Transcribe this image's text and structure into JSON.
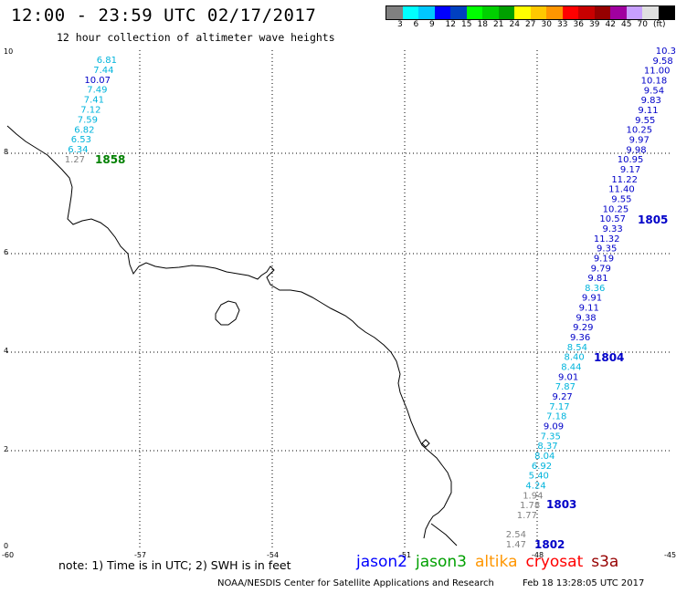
{
  "header": {
    "title": "12:00 - 23:59 UTC 02/17/2017",
    "subtitle": "12 hour collection of altimeter wave heights"
  },
  "legend": {
    "colors": [
      "#808080",
      "#00ffff",
      "#00c8ff",
      "#0000ff",
      "#0040c0",
      "#00ff00",
      "#00d000",
      "#00a000",
      "#ffff00",
      "#ffc800",
      "#ff9600",
      "#ff0000",
      "#c80000",
      "#960000",
      "#a000a0",
      "#c8a0ff",
      "#e0e0e0",
      "#000000"
    ],
    "labels": [
      "3",
      "6",
      "9",
      "12",
      "15",
      "18",
      "21",
      "24",
      "27",
      "30",
      "33",
      "36",
      "39",
      "42",
      "45",
      "70",
      "(ft)"
    ]
  },
  "axes": {
    "x_ticks": [
      "-60",
      "-57",
      "-54",
      "-51",
      "-48",
      "-45"
    ],
    "y_ticks": [
      "10",
      "8",
      "6",
      "4",
      "2",
      "0"
    ]
  },
  "pass_colors": {
    "gray": "#808080",
    "cyan": "#00b4dc",
    "blue": "#0000c8",
    "green": "#008000"
  },
  "passes": [
    {
      "label": "1858",
      "color": "green"
    },
    {
      "label": "1805",
      "color": "blue"
    },
    {
      "label": "1804",
      "color": "blue"
    },
    {
      "label": "1803",
      "color": "blue"
    },
    {
      "label": "1802",
      "color": "blue"
    }
  ],
  "track_1858": [
    {
      "v": "6.81",
      "c": "cyan"
    },
    {
      "v": "7.44",
      "c": "cyan"
    },
    {
      "v": "10.07",
      "c": "blue"
    },
    {
      "v": "7.49",
      "c": "cyan"
    },
    {
      "v": "7.41",
      "c": "cyan"
    },
    {
      "v": "7.12",
      "c": "cyan"
    },
    {
      "v": "7.59",
      "c": "cyan"
    },
    {
      "v": "6.82",
      "c": "cyan"
    },
    {
      "v": "6.53",
      "c": "cyan"
    },
    {
      "v": "6.34",
      "c": "cyan"
    },
    {
      "v": "1.27",
      "c": "gray"
    }
  ],
  "track_east": [
    {
      "v": "10.3",
      "c": "blue"
    },
    {
      "v": "9.58",
      "c": "blue"
    },
    {
      "v": "11.00",
      "c": "blue"
    },
    {
      "v": "10.18",
      "c": "blue"
    },
    {
      "v": "9.54",
      "c": "blue"
    },
    {
      "v": "9.83",
      "c": "blue"
    },
    {
      "v": "9.11",
      "c": "blue"
    },
    {
      "v": "9.55",
      "c": "blue"
    },
    {
      "v": "10.25",
      "c": "blue"
    },
    {
      "v": "9.97",
      "c": "blue"
    },
    {
      "v": "9.98",
      "c": "blue"
    },
    {
      "v": "10.95",
      "c": "blue"
    },
    {
      "v": "9.17",
      "c": "blue"
    },
    {
      "v": "11.22",
      "c": "blue"
    },
    {
      "v": "11.40",
      "c": "blue"
    },
    {
      "v": "9.55",
      "c": "blue"
    },
    {
      "v": "10.25",
      "c": "blue"
    },
    {
      "v": "10.57",
      "c": "blue"
    },
    {
      "v": "9.33",
      "c": "blue"
    },
    {
      "v": "11.32",
      "c": "blue"
    },
    {
      "v": "9.35",
      "c": "blue"
    },
    {
      "v": "9.19",
      "c": "blue"
    },
    {
      "v": "9.79",
      "c": "blue"
    },
    {
      "v": "9.81",
      "c": "blue"
    },
    {
      "v": "8.36",
      "c": "cyan"
    },
    {
      "v": "9.91",
      "c": "blue"
    },
    {
      "v": "9.11",
      "c": "blue"
    },
    {
      "v": "9.38",
      "c": "blue"
    },
    {
      "v": "9.29",
      "c": "blue"
    },
    {
      "v": "9.36",
      "c": "blue"
    },
    {
      "v": "8.54",
      "c": "cyan"
    },
    {
      "v": "8.40",
      "c": "cyan"
    },
    {
      "v": "8.44",
      "c": "cyan"
    },
    {
      "v": "9.01",
      "c": "blue"
    },
    {
      "v": "7.87",
      "c": "cyan"
    },
    {
      "v": "9.27",
      "c": "blue"
    },
    {
      "v": "7.17",
      "c": "cyan"
    },
    {
      "v": "7.18",
      "c": "cyan"
    },
    {
      "v": "9.09",
      "c": "blue"
    },
    {
      "v": "7.35",
      "c": "cyan"
    },
    {
      "v": "8.37",
      "c": "cyan"
    },
    {
      "v": "8.04",
      "c": "cyan"
    },
    {
      "v": "6.92",
      "c": "cyan"
    },
    {
      "v": "5.40",
      "c": "cyan"
    },
    {
      "v": "4.24",
      "c": "cyan"
    },
    {
      "v": "1.94",
      "c": "gray"
    },
    {
      "v": "1.78",
      "c": "gray"
    },
    {
      "v": "1.77",
      "c": "gray"
    }
  ],
  "track_south": [
    {
      "v": "2.54",
      "c": "gray"
    },
    {
      "v": "1.47",
      "c": "gray"
    }
  ],
  "note": "note: 1) Time is in UTC; 2) SWH is in feet",
  "satellites": [
    {
      "name": "jason2",
      "color": "#0000ff"
    },
    {
      "name": "jason3",
      "color": "#00a000"
    },
    {
      "name": "altika",
      "color": "#ff9600"
    },
    {
      "name": "cryosat",
      "color": "#ff0000"
    },
    {
      "name": "s3a",
      "color": "#960000"
    }
  ],
  "footer": {
    "credit": "NOAA/NESDIS Center for Satellite Applications and Research",
    "timestamp": "Feb 18 13:28:05 UTC 2017"
  }
}
